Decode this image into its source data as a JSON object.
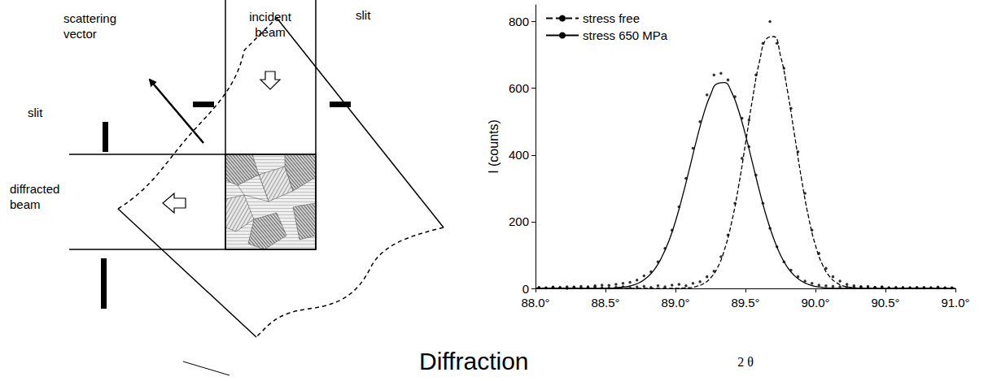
{
  "diagram": {
    "scattering_vector": "scattering vector",
    "incident_beam": "incident beam",
    "slits": [
      "slit",
      "slit"
    ],
    "diffracted_beam": "diffracted beam"
  },
  "caption": "Diffraction",
  "chart_data": {
    "type": "line",
    "x_label": "2 θ",
    "y_label": "I (counts)",
    "xlim": [
      88,
      91
    ],
    "xticks": [
      {
        "value": 88,
        "label": "88.0°"
      },
      {
        "value": 88.5,
        "label": "88.5°"
      },
      {
        "value": 89,
        "label": "89.0°"
      },
      {
        "value": 89.5,
        "label": "89.5°"
      },
      {
        "value": 90,
        "label": "90.0°"
      },
      {
        "value": 90.5,
        "label": "90.5°"
      },
      {
        "value": 91,
        "label": "91.0°"
      }
    ],
    "ylim": [
      0,
      850
    ],
    "yticks": [
      0,
      200,
      400,
      600,
      800
    ],
    "grid": false,
    "legend": "upper left",
    "x": [
      88,
      88.05,
      88.1,
      88.15,
      88.2,
      88.25,
      88.3,
      88.35,
      88.4,
      88.45,
      88.5,
      88.55,
      88.6,
      88.65,
      88.7,
      88.75,
      88.8,
      88.85,
      88.9,
      88.95,
      89,
      89.05,
      89.1,
      89.15,
      89.2,
      89.25,
      89.3,
      89.35,
      89.4,
      89.45,
      89.5,
      89.55,
      89.6,
      89.65,
      89.7,
      89.75,
      89.8,
      89.85,
      89.9,
      89.95,
      90,
      90.05,
      90.1,
      90.15,
      90.2,
      90.25,
      90.3,
      90.35,
      90.4,
      90.45,
      90.5,
      90.55,
      90.6,
      90.65,
      90.7,
      90.75,
      90.8,
      90.85,
      90.9,
      90.95,
      91
    ],
    "points_x": [
      88.025,
      88.075,
      88.125,
      88.175,
      88.225,
      88.275,
      88.325,
      88.375,
      88.425,
      88.475,
      88.525,
      88.575,
      88.625,
      88.675,
      88.725,
      88.775,
      88.825,
      88.875,
      88.925,
      88.975,
      89.025,
      89.075,
      89.125,
      89.175,
      89.225,
      89.275,
      89.325,
      89.375,
      89.425,
      89.475,
      89.525,
      89.575,
      89.625,
      89.675,
      89.725,
      89.775,
      89.825,
      89.875,
      89.925,
      89.975,
      90.025,
      90.075,
      90.125,
      90.175,
      90.225,
      90.275,
      90.325,
      90.375,
      90.425,
      90.475,
      90.525,
      90.575,
      90.625,
      90.675,
      90.725,
      90.775,
      90.825,
      90.875,
      90.925,
      90.975
    ],
    "series": [
      {
        "name": "stress free",
        "color": "#000000",
        "line_style": "dashed",
        "marker": "circle",
        "values": [
          0,
          0,
          0,
          0,
          0,
          0,
          0,
          0,
          0,
          0,
          0,
          0,
          0,
          0,
          0,
          0,
          0,
          0,
          0,
          0,
          0,
          1,
          2,
          6,
          14,
          31,
          62,
          116,
          196,
          304,
          434,
          567,
          680,
          748,
          755,
          698,
          592,
          461,
          329,
          215,
          129,
          71,
          36,
          17,
          7,
          3,
          1,
          0,
          0,
          0,
          0,
          0,
          0,
          0,
          0,
          0,
          0,
          0,
          0,
          0,
          0
        ],
        "points": [
          2,
          1,
          3,
          2,
          0,
          3,
          1,
          2,
          4,
          2,
          1,
          3,
          5,
          2,
          4,
          6,
          3,
          8,
          5,
          10,
          12,
          8,
          15,
          20,
          35,
          52,
          95,
          160,
          255,
          390,
          505,
          640,
          735,
          800,
          735,
          660,
          540,
          410,
          285,
          175,
          105,
          60,
          35,
          22,
          12,
          8,
          5,
          6,
          3,
          4,
          2,
          3,
          1,
          2,
          3,
          1,
          2,
          4,
          1,
          2
        ]
      },
      {
        "name": "stress 650 MPa",
        "color": "#000000",
        "line_style": "solid",
        "marker": "circle",
        "values": [
          0,
          0,
          0,
          0,
          0,
          0,
          0,
          0,
          0,
          0,
          0,
          1,
          3,
          5,
          10,
          19,
          34,
          57,
          92,
          139,
          201,
          276,
          359,
          444,
          521,
          580,
          614,
          617,
          589,
          534,
          460,
          376,
          292,
          215,
          151,
          100,
          63,
          38,
          22,
          12,
          6,
          3,
          1,
          0,
          0,
          0,
          0,
          0,
          0,
          0,
          0,
          0,
          0,
          0,
          0,
          0,
          0,
          0,
          0,
          0,
          0
        ],
        "points": [
          3,
          2,
          4,
          3,
          5,
          4,
          6,
          5,
          8,
          10,
          9,
          12,
          15,
          18,
          25,
          38,
          50,
          80,
          120,
          175,
          245,
          330,
          420,
          500,
          580,
          640,
          645,
          625,
          575,
          510,
          425,
          340,
          255,
          180,
          125,
          80,
          55,
          35,
          22,
          15,
          10,
          8,
          6,
          5,
          4,
          3,
          5,
          2,
          3,
          4,
          2,
          1,
          3,
          2,
          1,
          3,
          2,
          1,
          2,
          1
        ]
      }
    ]
  }
}
